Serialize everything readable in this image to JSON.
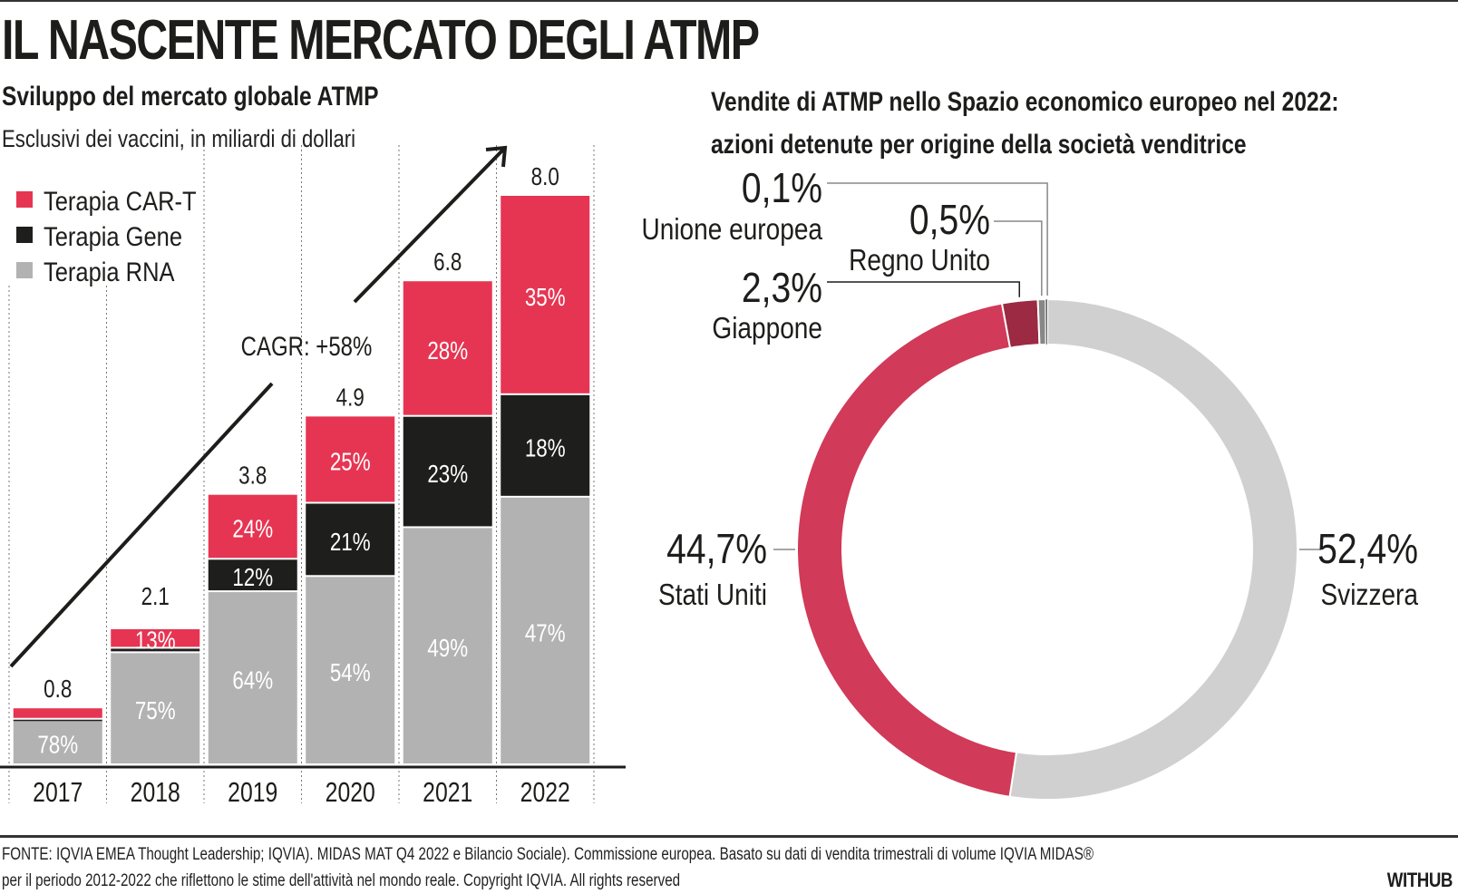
{
  "title": "IL NASCENTE MERCATO DEGLI ATMP",
  "left_panel": {
    "subtitle": "Sviluppo del mercato globale ATMP",
    "description": "Esclusivi dei vaccini, in miliardi di dollari",
    "cagr_label": "CAGR: +58%"
  },
  "right_panel": {
    "subtitle_line1": "Vendite di ATMP nello Spazio economico europeo nel 2022:",
    "subtitle_line2": "azioni detenute per origine della società venditrice"
  },
  "footer": {
    "source_line1": "FONTE: IQVIA EMEA Thought Leadership; IQVIA). MIDAS MAT Q4 2022 e Bilancio Sociale). Commissione europea. Basato su dati di vendita trimestrali di volume IQVIA MIDAS®",
    "source_line2": "per il periodo 2012-2022 che riflettono le stime dell'attività nel mondo reale. Copyright IQVIA. All rights reserved",
    "brand": "WITHUB"
  },
  "colors": {
    "car_t": "#e63552",
    "gene": "#1e1e1c",
    "rna": "#b2b2b2",
    "usa": "#d13a58",
    "japan": "#9b2a42",
    "uk": "#878787",
    "eu": "#1e1e1c",
    "swiss": "#d0d0d0"
  },
  "chart_data": [
    {
      "type": "bar",
      "stacked": true,
      "title": "Sviluppo del mercato globale ATMP",
      "subtitle": "Esclusivi dei vaccini, in miliardi di dollari",
      "categories": [
        "2017",
        "2018",
        "2019",
        "2020",
        "2021",
        "2022"
      ],
      "totals": [
        0.8,
        2.1,
        3.8,
        4.9,
        6.8,
        8.0
      ],
      "total_labels": [
        "0.8",
        "2.1",
        "3.8",
        "4.9",
        "6.8",
        "8.0"
      ],
      "series": [
        {
          "name": "Terapia RNA",
          "key": "rna",
          "shares": [
            78,
            75,
            64,
            54,
            49,
            47
          ],
          "labels": [
            "78%",
            "75%",
            "64%",
            "54%",
            "49%",
            "47%"
          ]
        },
        {
          "name": "Terapia Gene",
          "key": "gene",
          "shares": [
            2,
            3,
            12,
            21,
            23,
            18
          ],
          "labels": [
            "",
            "",
            "12%",
            "21%",
            "23%",
            "18%"
          ]
        },
        {
          "name": "Terapia CAR-T",
          "key": "car_t",
          "shares": [
            20,
            13,
            24,
            25,
            28,
            35
          ],
          "labels": [
            "",
            "13%",
            "24%",
            "25%",
            "28%",
            "35%"
          ]
        }
      ],
      "legend": [
        "Terapia CAR-T",
        "Terapia Gene",
        "Terapia RNA"
      ],
      "legend_position": "top-left",
      "ylim": [
        0,
        8.6
      ],
      "annotation": "CAGR: +58%",
      "grid": "vertical dotted separators"
    },
    {
      "type": "pie",
      "donut": true,
      "title": "Vendite di ATMP nello Spazio economico europeo nel 2022: azioni detenute per origine della società venditrice",
      "slices": [
        {
          "name": "Svizzera",
          "value": 52.4,
          "label": "52,4%",
          "key": "swiss"
        },
        {
          "name": "Stati Uniti",
          "value": 44.7,
          "label": "44,7%",
          "key": "usa"
        },
        {
          "name": "Giappone",
          "value": 2.3,
          "label": "2,3%",
          "key": "japan"
        },
        {
          "name": "Regno Unito",
          "value": 0.5,
          "label": "0,5%",
          "key": "uk"
        },
        {
          "name": "Unione europea",
          "value": 0.1,
          "label": "0,1%",
          "key": "eu"
        }
      ]
    }
  ]
}
